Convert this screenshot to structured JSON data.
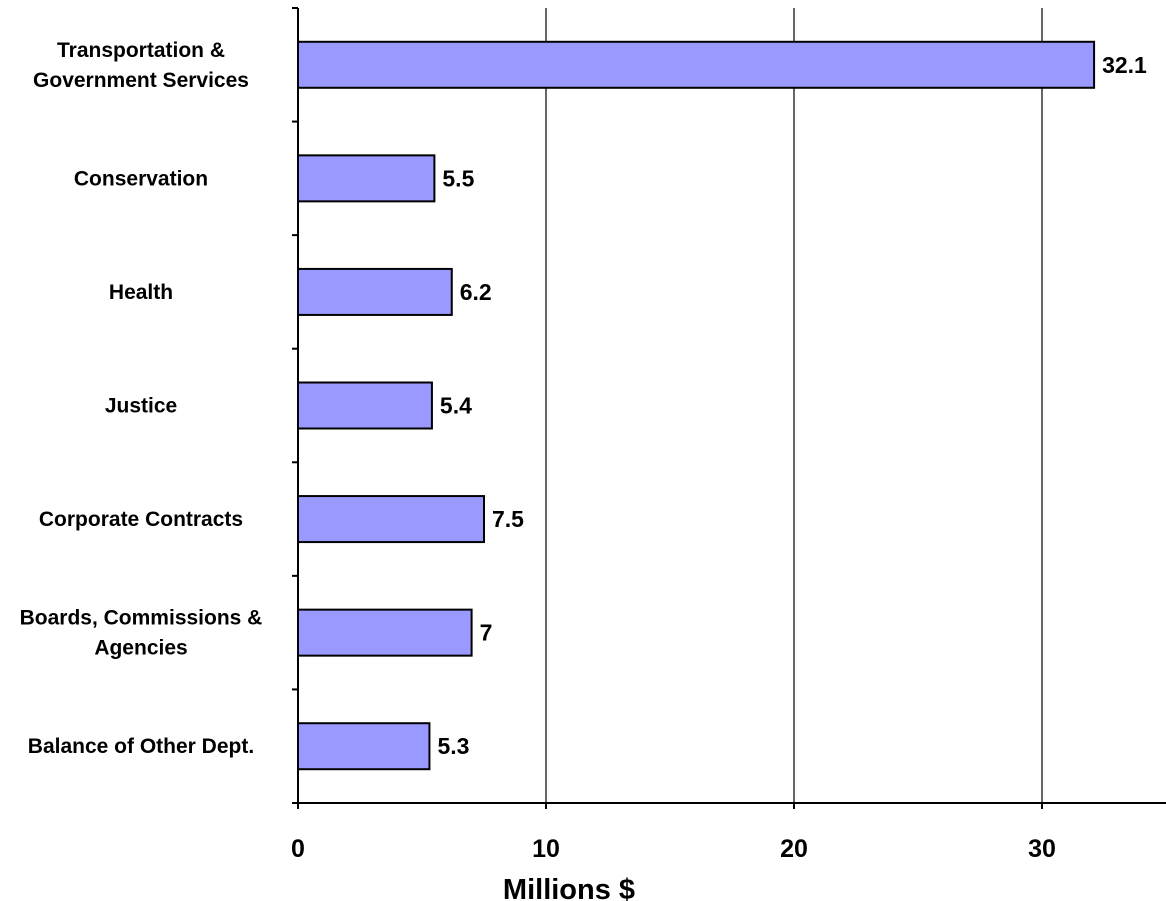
{
  "chart_data": {
    "type": "bar",
    "orientation": "horizontal",
    "categories": [
      [
        "Transportation &",
        "Government Services"
      ],
      [
        "Conservation"
      ],
      [
        "Health"
      ],
      [
        "Justice"
      ],
      [
        "Corporate Contracts"
      ],
      [
        "Boards, Commissions &",
        "Agencies"
      ],
      [
        "Balance of Other Dept."
      ]
    ],
    "values": [
      32.1,
      5.5,
      6.2,
      5.4,
      7.5,
      7,
      5.3
    ],
    "value_labels": [
      "32.1",
      "5.5",
      "6.2",
      "5.4",
      "7.5",
      "7",
      "5.3"
    ],
    "title": "",
    "xlabel": "Millions $",
    "ylabel": "",
    "xlim": [
      0,
      35
    ],
    "xticks": [
      0,
      10,
      20,
      30
    ],
    "xtick_labels": [
      "0",
      "10",
      "20",
      "30"
    ],
    "grid": "vertical",
    "legend": "none",
    "bar_color": "#9999ff",
    "bar_edge_color": "#000000"
  }
}
